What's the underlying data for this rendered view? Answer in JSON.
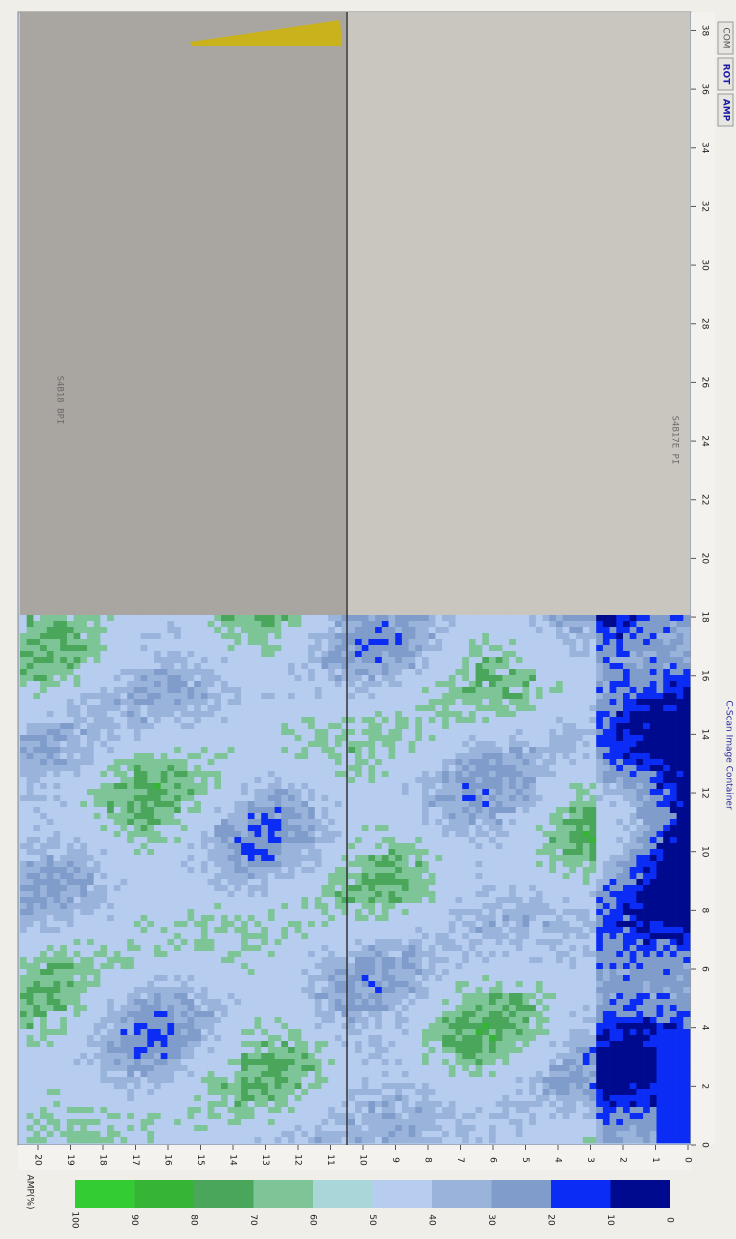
{
  "axis_right": {
    "ticks": [
      0,
      2,
      4,
      6,
      8,
      10,
      12,
      14,
      16,
      18,
      20,
      22,
      24,
      26,
      28,
      30,
      32,
      34,
      36,
      38
    ]
  },
  "axis_bottom": {
    "ticks": [
      0,
      1,
      2,
      3,
      4,
      5,
      6,
      7,
      8,
      9,
      10,
      11,
      12,
      13,
      14,
      15,
      16,
      17,
      18,
      19,
      20
    ]
  },
  "colorbar": {
    "title": "AMP(%)",
    "labels": [
      100,
      90,
      80,
      70,
      60,
      50,
      40,
      30,
      20,
      10,
      0
    ]
  },
  "status": "C-Scan Image Container",
  "toolbar": [
    "AMP",
    "ROT",
    "COM"
  ],
  "photos": [
    "S4B18 BPI",
    "S4B17E PI"
  ]
}
